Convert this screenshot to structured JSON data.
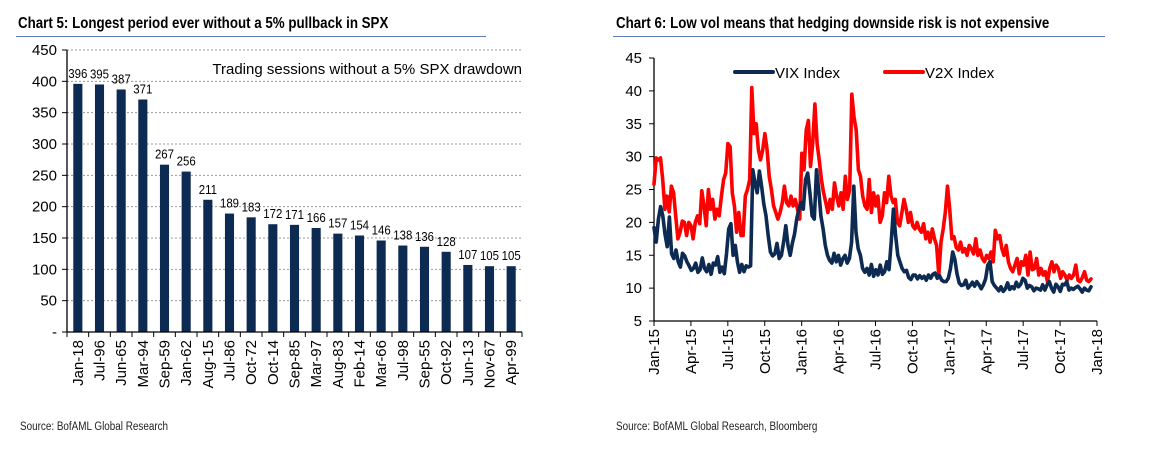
{
  "chart_data": [
    {
      "type": "bar",
      "title": "Chart 5: Longest period ever without a 5% pullback in SPX",
      "annotation": "Trading sessions without a 5% SPX drawdown",
      "categories": [
        "Jan-18",
        "Jul-96",
        "Jun-65",
        "Mar-94",
        "Sep-59",
        "Jan-62",
        "Aug-15",
        "Jul-86",
        "Oct-72",
        "Oct-14",
        "Sep-85",
        "Mar-97",
        "Aug-83",
        "Feb-14",
        "Mar-66",
        "Jul-98",
        "Sep-55",
        "Oct-92",
        "Jun-13",
        "Nov-67",
        "Apr-99"
      ],
      "values": [
        396,
        395,
        387,
        371,
        267,
        256,
        211,
        189,
        183,
        172,
        171,
        166,
        157,
        154,
        146,
        138,
        136,
        128,
        107,
        105,
        105
      ],
      "data_labels": [
        "396",
        "395",
        "387",
        "371",
        "267",
        "256",
        "211",
        "189",
        "183",
        "172",
        "171",
        "166",
        "157",
        "154",
        "146",
        "138",
        "136",
        "128",
        "107",
        "105",
        "105"
      ],
      "xlabel": "",
      "ylabel": "",
      "ylim": [
        0,
        450
      ],
      "yticks": [
        0,
        50,
        100,
        150,
        200,
        250,
        300,
        350,
        400,
        450
      ],
      "ytick_labels": [
        "-",
        "50",
        "100",
        "150",
        "200",
        "250",
        "300",
        "350",
        "400",
        "450"
      ],
      "grid": true,
      "bar_color": "#0c2a52",
      "source": "Source: BofAML Global Research"
    },
    {
      "type": "line",
      "title": "Chart 6: Low vol means that hedging downside risk is not expensive",
      "xlabel": "",
      "ylabel": "",
      "ylim": [
        5,
        45
      ],
      "yticks": [
        5,
        10,
        15,
        20,
        25,
        30,
        35,
        40,
        45
      ],
      "ytick_labels": [
        "5",
        "10",
        "15",
        "20",
        "25",
        "30",
        "35",
        "40",
        "45"
      ],
      "xlim_months": [
        0,
        36
      ],
      "xticks_months": [
        0,
        3,
        6,
        9,
        12,
        15,
        18,
        21,
        24,
        27,
        30,
        33,
        36
      ],
      "xtick_labels": [
        "Jan-15",
        "Apr-15",
        "Jul-15",
        "Oct-15",
        "Jan-16",
        "Apr-16",
        "Jul-16",
        "Oct-16",
        "Jan-17",
        "Apr-17",
        "Jul-17",
        "Oct-17",
        "Jan-18"
      ],
      "legend": "top-center",
      "grid": false,
      "x_unit": "weeks since Jan-15",
      "series": [
        {
          "name": "VIX Index",
          "color": "#0c2a52",
          "values": [
            19.2,
            17.0,
            20.5,
            22.4,
            21.0,
            18.2,
            16.3,
            20.8,
            15.2,
            14.5,
            15.8,
            14.0,
            13.2,
            15.3,
            14.9,
            14.0,
            13.4,
            12.7,
            13.0,
            13.8,
            12.4,
            12.8,
            14.6,
            13.0,
            12.5,
            13.6,
            12.1,
            13.8,
            13.5,
            14.8,
            12.4,
            13.2,
            12.2,
            15.2,
            19.0,
            19.8,
            15.0,
            16.5,
            14.0,
            12.4,
            13.6,
            12.5,
            13.4,
            13.2,
            13.4,
            28.0,
            26.0,
            24.5,
            27.8,
            25.5,
            22.8,
            21.0,
            18.0,
            15.5,
            14.9,
            15.2,
            16.8,
            14.5,
            15.0,
            17.0,
            19.5,
            16.5,
            15.0,
            16.8,
            18.2,
            20.5,
            22.0,
            23.0,
            22.0,
            26.5,
            27.5,
            24.5,
            21.0,
            20.5,
            28.0,
            25.0,
            21.0,
            19.0,
            16.5,
            15.0,
            14.2,
            13.8,
            15.3,
            14.0,
            15.0,
            13.5,
            14.5,
            15.0,
            13.8,
            14.5,
            17.0,
            25.5,
            18.5,
            16.0,
            15.0,
            13.0,
            12.4,
            13.0,
            12.0,
            13.6,
            11.8,
            12.8,
            12.0,
            13.5,
            12.1,
            12.5,
            14.0,
            12.8,
            17.0,
            22.0,
            18.0,
            15.0,
            14.0,
            13.0,
            12.5,
            12.7,
            11.6,
            11.3,
            12.0,
            12.0,
            11.4,
            11.9,
            11.5,
            11.8,
            11.2,
            12.0,
            11.5,
            12.1,
            12.3,
            11.5,
            11.9,
            11.2,
            11.0,
            11.0,
            11.5,
            13.0,
            15.5,
            14.4,
            12.2,
            10.8,
            10.4,
            10.5,
            11.2,
            10.0,
            10.4,
            10.9,
            10.3,
            11.0,
            10.5,
            9.9,
            10.5,
            11.4,
            13.5,
            14.0,
            11.0,
            10.4,
            10.0,
            9.6,
            10.2,
            9.5,
            9.9,
            10.8,
            9.8,
            10.2,
            9.9,
            10.9,
            10.2,
            10.6,
            11.5,
            11.2,
            10.0,
            10.4,
            10.2,
            9.6,
            10.0,
            9.9,
            9.7,
            10.5,
            9.7,
            10.5,
            11.0,
            10.0,
            9.4,
            10.6,
            10.2,
            9.5,
            10.6,
            10.5,
            11.0,
            9.7,
            10.0,
            9.8,
            10.1,
            10.3,
            9.9,
            9.4,
            10.0,
            9.7,
            9.6,
            10.2
          ],
          "note": "approximate weekly levels read from the plot"
        },
        {
          "name": "V2X Index",
          "color": "#ff0000",
          "values": [
            25.8,
            29.8,
            29.5,
            29.8,
            26.5,
            22.0,
            24.0,
            21.6,
            25.5,
            24.5,
            21.0,
            17.5,
            18.5,
            20.2,
            20.0,
            18.0,
            20.0,
            19.5,
            17.5,
            20.0,
            21.0,
            19.8,
            24.8,
            22.5,
            19.5,
            25.0,
            22.0,
            23.5,
            20.5,
            22.0,
            21.0,
            24.0,
            26.5,
            27.5,
            32.0,
            31.5,
            24.5,
            22.5,
            18.5,
            21.5,
            18.0,
            18.0,
            24.0,
            25.0,
            26.5,
            40.5,
            33.5,
            35.0,
            31.0,
            29.5,
            31.0,
            33.5,
            31.0,
            27.0,
            25.0,
            22.5,
            21.5,
            20.5,
            21.5,
            23.0,
            25.5,
            23.0,
            22.5,
            24.0,
            22.5,
            23.5,
            22.0,
            20.5,
            30.5,
            28.0,
            34.0,
            35.5,
            28.5,
            32.0,
            38.0,
            32.0,
            29.5,
            26.5,
            24.5,
            23.0,
            21.5,
            23.5,
            22.0,
            26.0,
            24.0,
            22.5,
            24.5,
            22.0,
            27.0,
            23.5,
            25.0,
            39.5,
            36.0,
            34.0,
            28.0,
            27.0,
            24.0,
            22.5,
            22.0,
            26.5,
            21.5,
            24.5,
            22.5,
            24.0,
            20.0,
            21.0,
            24.5,
            23.0,
            27.0,
            24.0,
            23.0,
            23.5,
            20.0,
            19.5,
            21.5,
            23.5,
            22.0,
            20.0,
            21.5,
            19.5,
            19.0,
            20.0,
            19.0,
            18.5,
            19.8,
            17.5,
            18.5,
            17.0,
            19.0,
            17.5,
            16.5,
            12.0,
            17.0,
            19.0,
            21.5,
            25.5,
            22.0,
            17.5,
            17.8,
            16.2,
            15.8,
            17.0,
            15.5,
            16.0,
            15.0,
            16.5,
            16.0,
            15.2,
            17.5,
            15.0,
            15.8,
            14.5,
            14.0,
            15.0,
            14.5,
            15.5,
            14.0,
            18.8,
            17.5,
            18.0,
            16.0,
            15.0,
            16.5,
            14.0,
            13.0,
            12.5,
            13.5,
            14.5,
            12.2,
            14.0,
            13.5,
            15.0,
            12.0,
            15.5,
            12.8,
            13.0,
            14.5,
            12.0,
            13.0,
            12.0,
            12.5,
            11.0,
            13.0,
            14.0,
            12.5,
            13.5,
            13.0,
            11.5,
            12.5,
            12.0,
            11.2,
            12.0,
            11.5,
            12.0,
            13.5,
            11.2,
            11.0,
            11.6,
            12.5,
            11.2,
            11.0,
            11.4
          ],
          "note": "approximate weekly levels read from the plot"
        }
      ],
      "source": "Source: BofAML Global Research, Bloomberg"
    }
  ]
}
